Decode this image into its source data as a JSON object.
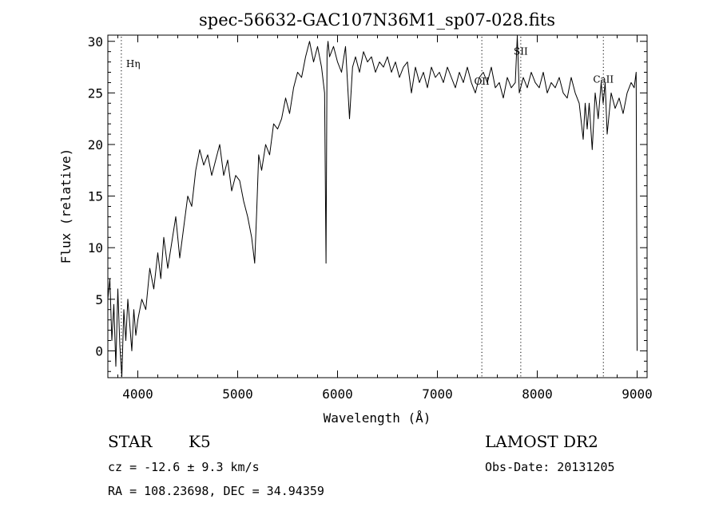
{
  "chart_data": {
    "type": "line",
    "title": "spec-56632-GAC107N36M1_sp07-028.fits",
    "xlabel": "Wavelength (Å)",
    "ylabel": "Flux (relative)",
    "xlim": [
      3700,
      9100
    ],
    "ylim": [
      -2.6,
      30.6
    ],
    "xticks": [
      4000,
      5000,
      6000,
      7000,
      8000,
      9000
    ],
    "yticks": [
      0,
      5,
      10,
      15,
      20,
      25,
      30
    ],
    "grid": false,
    "line_color": "#000000",
    "series": [
      {
        "x": [
          3700,
          3720,
          3740,
          3760,
          3780,
          3800,
          3820,
          3840,
          3860,
          3880,
          3900,
          3920,
          3940,
          3960,
          3980,
          4000,
          4040,
          4080,
          4120,
          4160,
          4200,
          4230,
          4260,
          4300,
          4340,
          4380,
          4420,
          4460,
          4500,
          4540,
          4580,
          4620,
          4660,
          4700,
          4740,
          4780,
          4820,
          4860,
          4900,
          4940,
          4980,
          5020,
          5060,
          5100,
          5140,
          5170,
          5190,
          5210,
          5240,
          5280,
          5320,
          5360,
          5400,
          5440,
          5480,
          5520,
          5560,
          5600,
          5640,
          5680,
          5720,
          5760,
          5800,
          5840,
          5870,
          5885,
          5895,
          5905,
          5920,
          5960,
          6000,
          6040,
          6080,
          6120,
          6150,
          6180,
          6220,
          6260,
          6300,
          6340,
          6380,
          6420,
          6460,
          6500,
          6540,
          6580,
          6620,
          6660,
          6700,
          6740,
          6780,
          6820,
          6860,
          6900,
          6940,
          6980,
          7020,
          7060,
          7100,
          7140,
          7180,
          7220,
          7260,
          7300,
          7340,
          7380,
          7420,
          7460,
          7500,
          7540,
          7580,
          7620,
          7660,
          7700,
          7740,
          7780,
          7800,
          7820,
          7860,
          7900,
          7940,
          7980,
          8020,
          8060,
          8100,
          8140,
          8180,
          8220,
          8260,
          8300,
          8340,
          8380,
          8420,
          8460,
          8480,
          8500,
          8520,
          8550,
          8580,
          8610,
          8640,
          8660,
          8680,
          8700,
          8740,
          8780,
          8820,
          8860,
          8900,
          8940,
          8970,
          8990,
          9000
        ],
        "values": [
          5.0,
          7.0,
          1.0,
          4.5,
          -1.5,
          6.0,
          0.5,
          -2.5,
          4.0,
          1.0,
          5.0,
          2.5,
          0.0,
          4.0,
          1.5,
          3.0,
          5.0,
          4.0,
          8.0,
          6.0,
          9.5,
          7.0,
          11.0,
          8.0,
          10.5,
          13.0,
          9.0,
          12.0,
          15.0,
          14.0,
          17.5,
          19.5,
          18.0,
          19.0,
          17.0,
          18.5,
          20.0,
          17.0,
          18.5,
          15.5,
          17.0,
          16.5,
          14.5,
          13.0,
          11.0,
          8.5,
          13.5,
          19.0,
          17.5,
          20.0,
          19.0,
          22.0,
          21.5,
          22.5,
          24.5,
          23.0,
          25.5,
          27.0,
          26.5,
          28.5,
          30.0,
          28.0,
          29.5,
          27.5,
          25.0,
          8.5,
          29.0,
          30.0,
          28.5,
          29.5,
          28.0,
          27.0,
          29.5,
          22.5,
          27.5,
          28.5,
          27.0,
          29.0,
          28.0,
          28.5,
          27.0,
          28.0,
          27.5,
          28.5,
          27.0,
          28.0,
          26.5,
          27.5,
          28.0,
          25.0,
          27.5,
          26.0,
          27.0,
          25.5,
          27.5,
          26.5,
          27.0,
          26.0,
          27.5,
          26.5,
          25.5,
          27.0,
          26.0,
          27.5,
          26.0,
          25.0,
          26.5,
          27.0,
          26.0,
          27.5,
          25.5,
          26.0,
          24.5,
          26.5,
          25.5,
          26.0,
          30.5,
          25.0,
          26.5,
          25.5,
          27.0,
          26.0,
          25.5,
          27.0,
          25.0,
          26.0,
          25.5,
          26.5,
          25.0,
          24.5,
          26.5,
          25.0,
          24.0,
          20.5,
          24.0,
          21.5,
          24.0,
          19.5,
          25.0,
          22.5,
          26.0,
          24.0,
          26.0,
          21.0,
          25.0,
          23.5,
          24.5,
          23.0,
          25.0,
          26.0,
          25.5,
          27.0,
          0.0
        ]
      }
    ],
    "lines": [
      {
        "label": "Hη",
        "x": 3835
      },
      {
        "label": "OII",
        "x": 7445
      },
      {
        "label": "SII",
        "x": 7835
      },
      {
        "label": "CaII",
        "x": 8662
      }
    ]
  },
  "info": {
    "class": "STAR",
    "subclass": "K5",
    "survey": "LAMOST DR2",
    "cz": "cz = -12.6 ± 9.3 km/s",
    "obs_date": "Obs-Date: 20131205",
    "coords": "RA = 108.23698, DEC =  34.94359"
  }
}
